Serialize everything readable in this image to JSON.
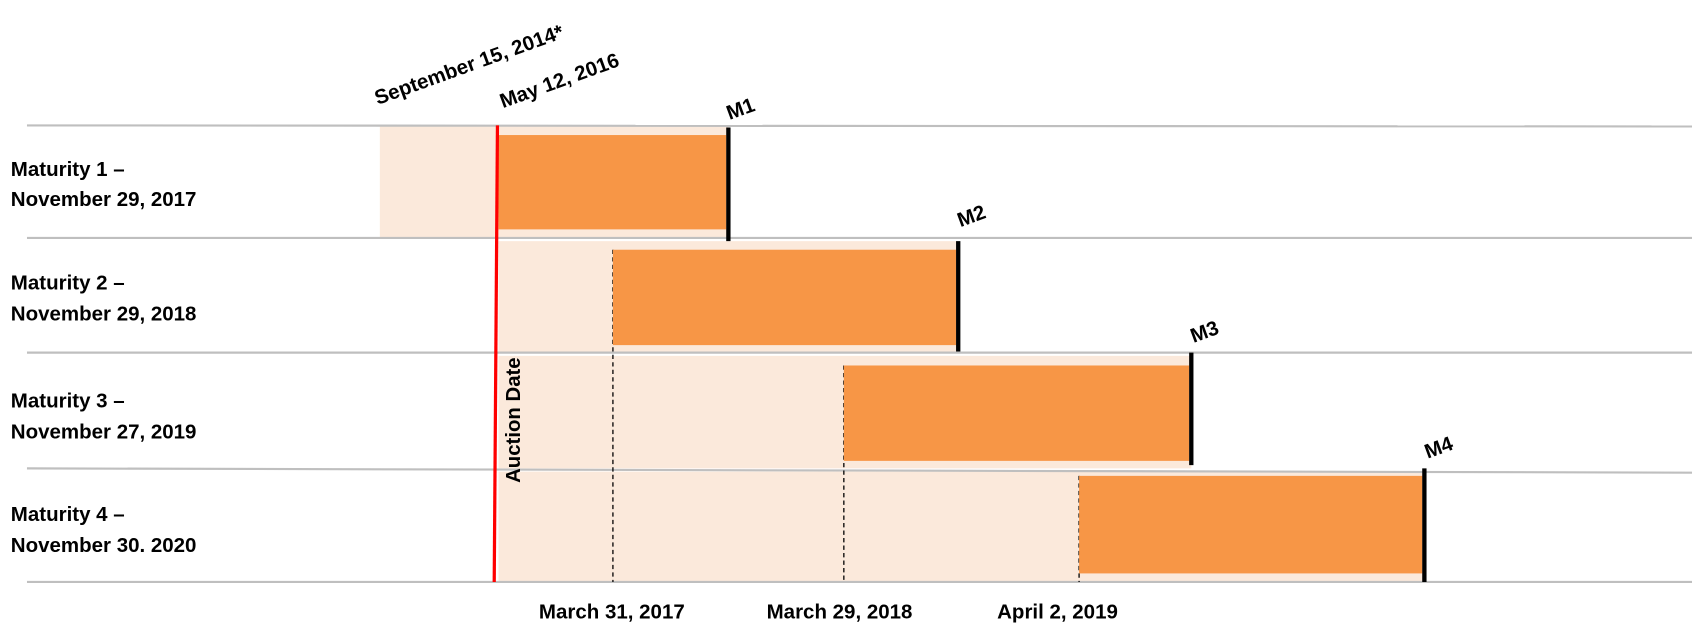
{
  "top_dates": [
    "September 15, 2014*",
    "May 12, 2016"
  ],
  "auction_label": "Auction Date",
  "rows": [
    {
      "label": [
        "Maturity 1 –",
        "November 29, 2017"
      ],
      "marker": "M1"
    },
    {
      "label": [
        "Maturity 2 –",
        "November 29, 2018"
      ],
      "marker": "M2"
    },
    {
      "label": [
        "Maturity 3 –",
        "November 27, 2019"
      ],
      "marker": "M3"
    },
    {
      "label": [
        "Maturity 4 –",
        "November 30. 2020"
      ],
      "marker": "M4"
    }
  ],
  "bottom_dates": [
    "March 31, 2017",
    "March 29, 2018",
    "April 2, 2019"
  ]
}
